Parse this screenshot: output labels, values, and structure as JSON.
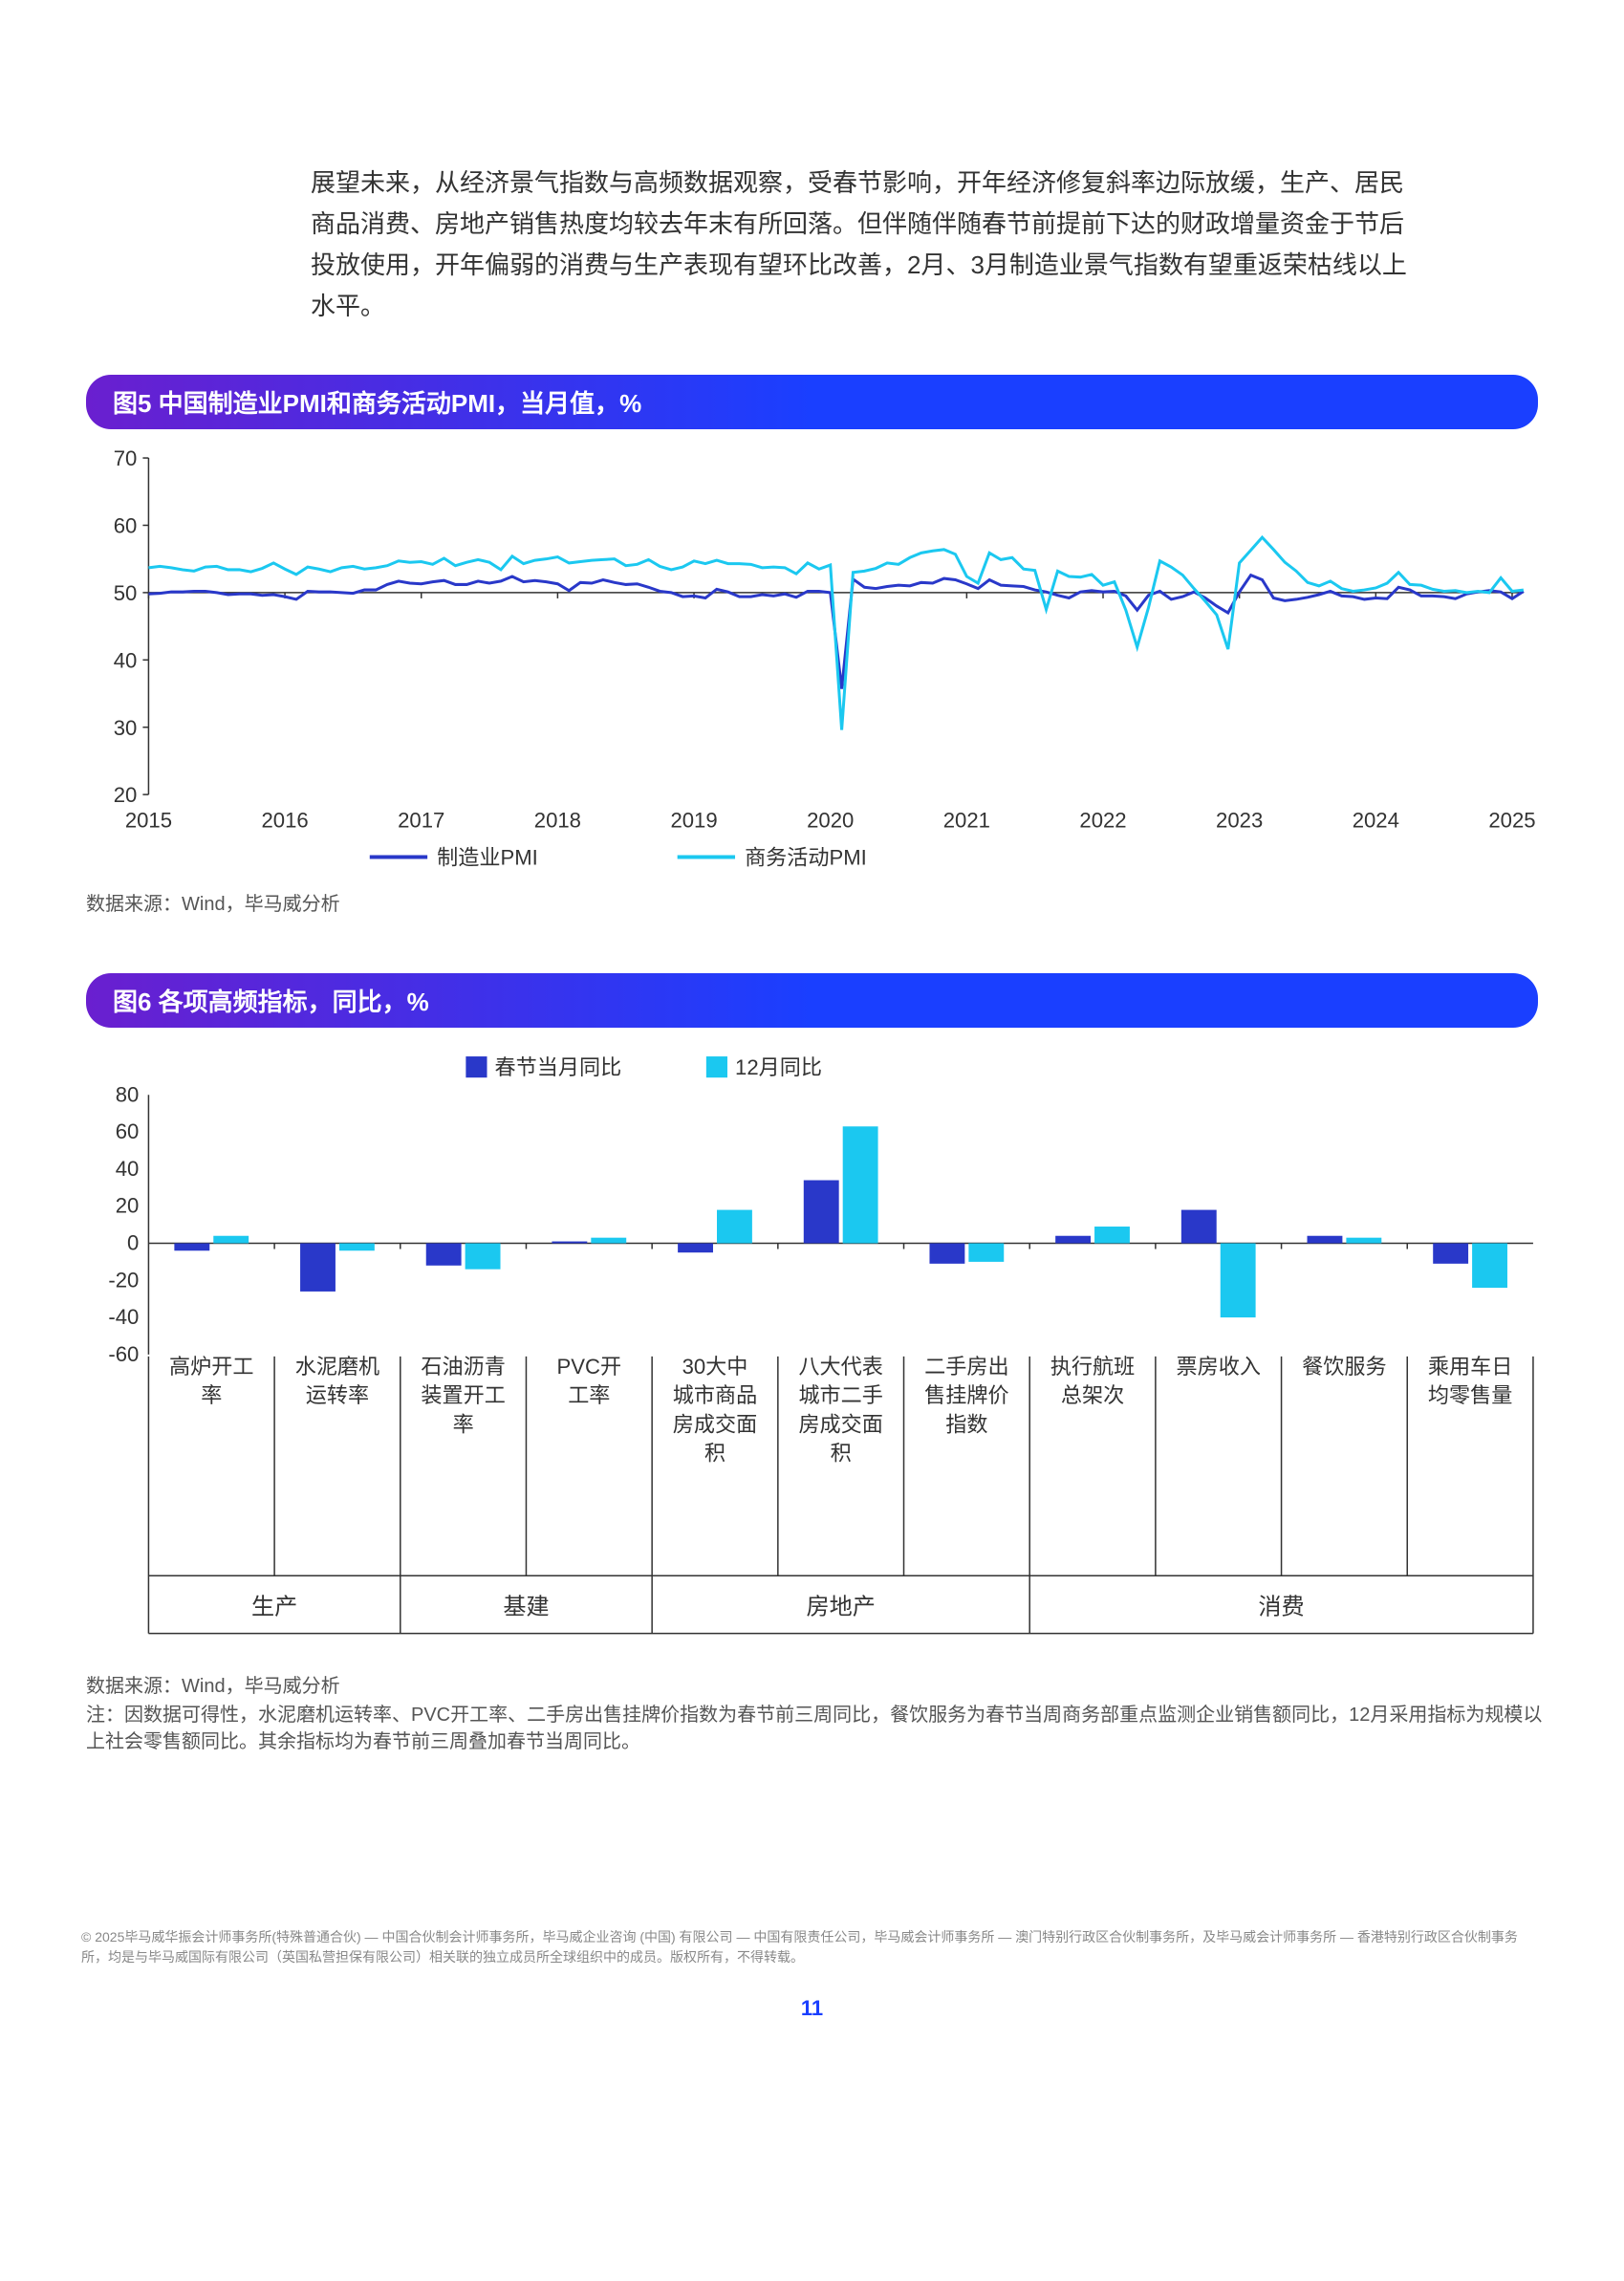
{
  "intro": "展望未来，从经济景气指数与高频数据观察，受春节影响，开年经济修复斜率边际放缓，生产、居民商品消费、房地产销售热度均较去年末有所回落。但伴随伴随春节前提前下达的财政增量资金于节后投放使用，开年偏弱的消费与生产表现有望环比改善，2月、3月制造业景气指数有望重返荣枯线以上水平。",
  "chart5": {
    "title": "图5 中国制造业PMI和商务活动PMI，当月值，%",
    "type": "line",
    "x_years": [
      "2015",
      "2016",
      "2017",
      "2018",
      "2019",
      "2020",
      "2021",
      "2022",
      "2023",
      "2024",
      "2025"
    ],
    "ylim": [
      20,
      70
    ],
    "ytick_step": 10,
    "yticks": [
      20,
      30,
      40,
      50,
      60,
      70
    ],
    "series": [
      {
        "name": "制造业PMI",
        "color": "#2938c9",
        "stroke_width": 3,
        "values": [
          49.8,
          49.9,
          50.1,
          50.1,
          50.2,
          50.2,
          50.0,
          49.7,
          49.8,
          49.8,
          49.6,
          49.7,
          49.4,
          49.0,
          50.2,
          50.1,
          50.1,
          50.0,
          49.9,
          50.4,
          50.4,
          51.2,
          51.7,
          51.4,
          51.3,
          51.6,
          51.8,
          51.2,
          51.2,
          51.7,
          51.4,
          51.7,
          52.4,
          51.6,
          51.8,
          51.6,
          51.3,
          50.3,
          51.5,
          51.4,
          51.9,
          51.5,
          51.2,
          51.3,
          50.8,
          50.2,
          50.0,
          49.4,
          49.5,
          49.2,
          50.5,
          50.1,
          49.4,
          49.4,
          49.7,
          49.5,
          49.8,
          49.3,
          50.2,
          50.2,
          50.0,
          35.7,
          52.0,
          50.8,
          50.6,
          50.9,
          51.1,
          51.0,
          51.5,
          51.4,
          52.1,
          51.9,
          51.3,
          50.6,
          51.9,
          51.1,
          51.0,
          50.9,
          50.4,
          50.1,
          49.6,
          49.2,
          50.1,
          50.3,
          50.1,
          50.2,
          49.5,
          47.4,
          49.6,
          50.2,
          49.0,
          49.4,
          50.1,
          49.2,
          48.0,
          47.0,
          50.1,
          52.6,
          51.9,
          49.2,
          48.8,
          49.0,
          49.3,
          49.7,
          50.2,
          49.5,
          49.4,
          49.0,
          49.2,
          49.1,
          50.8,
          50.4,
          49.5,
          49.5,
          49.4,
          49.1,
          49.8,
          50.1,
          50.3,
          50.1,
          49.1,
          50.2
        ]
      },
      {
        "name": "商务活动PMI",
        "color": "#1bc8f0",
        "stroke_width": 3,
        "values": [
          53.7,
          53.9,
          53.7,
          53.4,
          53.2,
          53.8,
          53.9,
          53.4,
          53.4,
          53.1,
          53.6,
          54.4,
          53.5,
          52.7,
          53.8,
          53.5,
          53.1,
          53.7,
          53.9,
          53.5,
          53.7,
          54.0,
          54.7,
          54.5,
          54.6,
          54.2,
          55.1,
          54.0,
          54.5,
          54.9,
          54.5,
          53.4,
          55.4,
          54.3,
          54.8,
          55.0,
          55.3,
          54.4,
          54.6,
          54.8,
          54.9,
          55.0,
          54.0,
          54.2,
          54.9,
          53.9,
          53.4,
          53.8,
          54.7,
          54.3,
          54.8,
          54.3,
          54.3,
          54.2,
          53.7,
          53.8,
          53.7,
          52.8,
          54.4,
          53.5,
          54.1,
          29.6,
          53.0,
          53.2,
          53.6,
          54.4,
          54.2,
          55.2,
          55.9,
          56.2,
          56.4,
          55.7,
          52.4,
          51.4,
          55.9,
          54.9,
          55.2,
          53.5,
          53.3,
          47.5,
          53.2,
          52.4,
          52.3,
          52.7,
          51.1,
          51.6,
          47.4,
          41.9,
          47.8,
          54.7,
          53.8,
          52.6,
          50.6,
          48.7,
          46.7,
          41.6,
          54.4,
          56.3,
          58.2,
          56.4,
          54.5,
          53.2,
          51.5,
          51.0,
          51.7,
          50.6,
          50.2,
          50.4,
          50.7,
          51.4,
          53.0,
          51.2,
          51.1,
          50.5,
          50.2,
          50.3,
          50.0,
          50.2,
          50.0,
          52.2,
          50.2,
          50.4
        ]
      }
    ],
    "source": "数据来源：Wind，毕马威分析"
  },
  "chart6": {
    "title": "图6 各项高频指标，同比，%",
    "type": "grouped-bar",
    "ylim": [
      -60,
      80
    ],
    "ytick_step": 20,
    "yticks": [
      -60,
      -40,
      -20,
      0,
      20,
      40,
      60,
      80
    ],
    "legend": [
      {
        "name": "春节当月同比",
        "color": "#2938c9"
      },
      {
        "name": "12月同比",
        "color": "#1bc8f0"
      }
    ],
    "categories": [
      {
        "label": "高炉开工率",
        "v1": -4,
        "v2": 4,
        "group": "生产"
      },
      {
        "label": "水泥磨机运转率",
        "v1": -26,
        "v2": -4,
        "group": "生产"
      },
      {
        "label": "石油沥青装置开工率",
        "v1": -12,
        "v2": -14,
        "group": "基建"
      },
      {
        "label": "PVC开工率",
        "v1": 1,
        "v2": 3,
        "group": "基建"
      },
      {
        "label": "30大中城市商品房成交面积",
        "v1": -5,
        "v2": 18,
        "group": "房地产"
      },
      {
        "label": "八大代表城市二手房成交面积",
        "v1": 34,
        "v2": 63,
        "group": "房地产"
      },
      {
        "label": "二手房出售挂牌价指数",
        "v1": -11,
        "v2": -10,
        "group": "房地产"
      },
      {
        "label": "执行航班总架次",
        "v1": 4,
        "v2": 9,
        "group": "消费"
      },
      {
        "label": "票房收入",
        "v1": 18,
        "v2": -40,
        "group": "消费"
      },
      {
        "label": "餐饮服务",
        "v1": 4,
        "v2": 3,
        "group": "消费"
      },
      {
        "label": "乘用车日均零售量",
        "v1": -11,
        "v2": -24,
        "group": "消费"
      }
    ],
    "groups": [
      "生产",
      "基建",
      "房地产",
      "消费"
    ],
    "source": "数据来源：Wind，毕马威分析",
    "note": "注：因数据可得性，水泥磨机运转率、PVC开工率、二手房出售挂牌价指数为春节前三周同比，餐饮服务为春节当周商务部重点监测企业销售额同比，12月采用指标为规模以上社会零售额同比。其余指标均为春节前三周叠加春节当周同比。"
  },
  "copyright": "© 2025毕马威华振会计师事务所(特殊普通合伙) — 中国合伙制会计师事务所，毕马威企业咨询 (中国) 有限公司 — 中国有限责任公司，毕马威会计师事务所 — 澳门特别行政区合伙制事务所，及毕马威会计师事务所 — 香港特别行政区合伙制事务所，均是与毕马威国际有限公司（英国私营担保有限公司）相关联的独立成员所全球组织中的成员。版权所有，不得转载。",
  "page_number": "11"
}
